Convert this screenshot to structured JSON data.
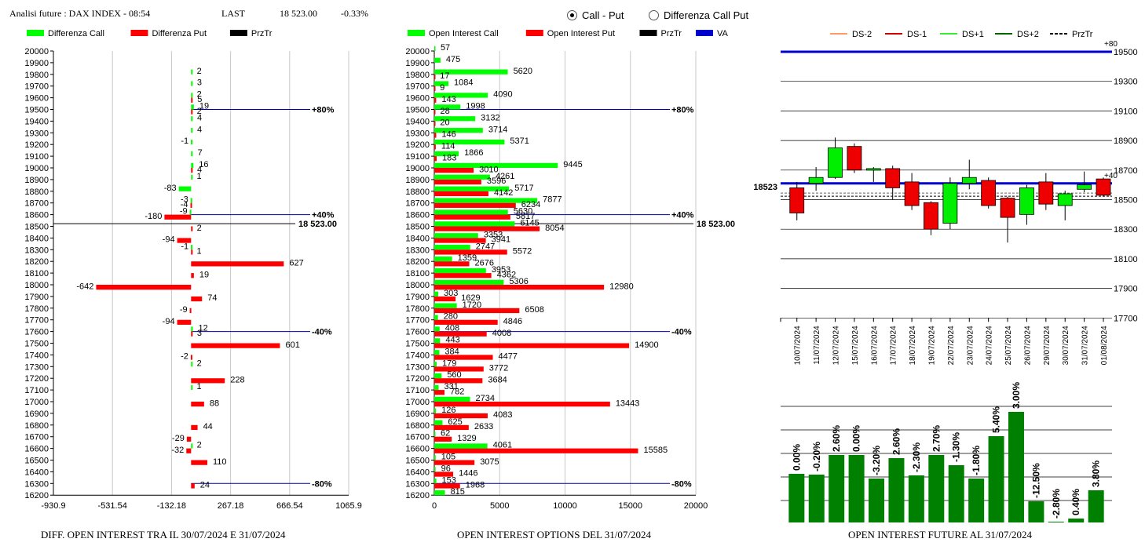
{
  "header": {
    "label": "Analisi future : DAX INDEX - 08:54",
    "last_label": "LAST",
    "last_value": "18 523.00",
    "change": "-0.33%"
  },
  "radios": [
    {
      "label": "Call - Put",
      "selected": true
    },
    {
      "label": "Differenza Call Put",
      "selected": false
    }
  ],
  "colors": {
    "call": "#00ff00",
    "put": "#ff0000",
    "price": "#000000",
    "va": "#0000cc",
    "bar_future": "#008000"
  },
  "chart_data": [
    {
      "type": "bar",
      "title": "DIFF. OPEN INTEREST TRA IL 30/07/2024 E 31/07/2024",
      "legend": [
        "Differenza Call",
        "Differenza Put",
        "PrzTr"
      ],
      "categories": [
        20000,
        19900,
        19800,
        19700,
        19600,
        19500,
        19400,
        19300,
        19200,
        19100,
        19000,
        18900,
        18800,
        18700,
        18600,
        18500,
        18400,
        18300,
        18200,
        18100,
        18000,
        17900,
        17800,
        17700,
        17600,
        17500,
        17400,
        17300,
        17200,
        17100,
        17000,
        16900,
        16800,
        16700,
        16600,
        16500,
        16400,
        16300,
        16200
      ],
      "series": [
        {
          "name": "Differenza Call",
          "values": [
            0,
            0,
            2,
            3,
            2,
            19,
            4,
            4,
            -1,
            7,
            16,
            1,
            -83,
            -3,
            -9,
            0,
            0,
            -1,
            0,
            0,
            0,
            0,
            0,
            0,
            12,
            0,
            0,
            2,
            0,
            1,
            0,
            0,
            0,
            0,
            2,
            0,
            0,
            0,
            0
          ]
        },
        {
          "name": "Differenza Put",
          "values": [
            0,
            0,
            0,
            0,
            5,
            2,
            0,
            0,
            0,
            0,
            4,
            0,
            0,
            -4,
            -180,
            2,
            -94,
            1,
            627,
            19,
            -642,
            74,
            -9,
            -94,
            3,
            601,
            -2,
            0,
            228,
            0,
            88,
            0,
            44,
            -29,
            -32,
            110,
            0,
            24,
            0
          ]
        }
      ],
      "xlim": [
        -930.9,
        1065.9
      ],
      "xticks": [
        "-930.9",
        "-531.54",
        "-132.18",
        "267.18",
        "666.54",
        "1065.9"
      ],
      "price": 18523.0,
      "price_label": "18 523.00",
      "levels": [
        {
          "strike": 19500,
          "label": "+80%"
        },
        {
          "strike": 18600,
          "label": "+40%"
        },
        {
          "strike": 17600,
          "label": "-40%"
        },
        {
          "strike": 16300,
          "label": "-80%"
        }
      ]
    },
    {
      "type": "bar",
      "title": "OPEN INTEREST OPTIONS DEL 31/07/2024",
      "legend": [
        "Open Interest Call",
        "Open Interest Put",
        "PrzTr",
        "VA"
      ],
      "categories": [
        20000,
        19900,
        19800,
        19700,
        19600,
        19500,
        19400,
        19300,
        19200,
        19100,
        19000,
        18900,
        18800,
        18700,
        18600,
        18500,
        18400,
        18300,
        18200,
        18100,
        18000,
        17900,
        17800,
        17700,
        17600,
        17500,
        17400,
        17300,
        17200,
        17100,
        17000,
        16900,
        16800,
        16700,
        16600,
        16500,
        16400,
        16300,
        16200
      ],
      "series": [
        {
          "name": "Open Interest Call",
          "values": [
            57,
            475,
            5620,
            1084,
            4090,
            1998,
            3132,
            3714,
            5371,
            1866,
            9445,
            4261,
            5717,
            7877,
            5630,
            6145,
            3353,
            2747,
            1359,
            3953,
            5306,
            303,
            1720,
            280,
            408,
            443,
            384,
            179,
            560,
            331,
            2734,
            126,
            625,
            62,
            4061,
            105,
            96,
            153,
            815
          ]
        },
        {
          "name": "Open Interest Put",
          "values": [
            0,
            0,
            17,
            9,
            143,
            28,
            20,
            146,
            114,
            183,
            3010,
            3596,
            4142,
            6234,
            5817,
            8054,
            3941,
            5572,
            2676,
            4362,
            12980,
            1629,
            6508,
            4846,
            4008,
            14900,
            4477,
            3772,
            3684,
            782,
            13443,
            4083,
            2633,
            1329,
            15585,
            3075,
            1446,
            1968,
            0
          ]
        }
      ],
      "xlim": [
        0,
        20000
      ],
      "xticks": [
        "0",
        "5000",
        "10000",
        "15000",
        "20000"
      ],
      "price": 18523.0,
      "price_label": "18 523.00",
      "levels": [
        {
          "strike": 19500,
          "label": "+80%"
        },
        {
          "strike": 18600,
          "label": "+40%"
        },
        {
          "strike": 17600,
          "label": "-40%"
        },
        {
          "strike": 16300,
          "label": "-80%"
        }
      ]
    },
    {
      "type": "candlestick",
      "legend": [
        "DS-2",
        "DS-1",
        "DS+1",
        "DS+2",
        "PrzTr"
      ],
      "dates": [
        "10/07/2024",
        "11/07/2024",
        "12/07/2024",
        "15/07/2024",
        "16/07/2024",
        "17/07/2024",
        "18/07/2024",
        "19/07/2024",
        "22/07/2024",
        "23/07/2024",
        "24/07/2024",
        "25/07/2024",
        "26/07/2024",
        "29/07/2024",
        "30/07/2024",
        "31/07/2024",
        "01/08/2024"
      ],
      "ohlc": [
        [
          18580,
          18620,
          18360,
          18410
        ],
        [
          18610,
          18720,
          18560,
          18650
        ],
        [
          18650,
          18920,
          18640,
          18850
        ],
        [
          18860,
          18880,
          18680,
          18700
        ],
        [
          18700,
          18720,
          18620,
          18710
        ],
        [
          18710,
          18730,
          18500,
          18580
        ],
        [
          18620,
          18680,
          18430,
          18460
        ],
        [
          18480,
          18490,
          18260,
          18300
        ],
        [
          18340,
          18650,
          18300,
          18610
        ],
        [
          18610,
          18770,
          18570,
          18650
        ],
        [
          18630,
          18650,
          18440,
          18460
        ],
        [
          18510,
          18520,
          18210,
          18380
        ],
        [
          18400,
          18600,
          18330,
          18580
        ],
        [
          18620,
          18680,
          18430,
          18470
        ],
        [
          18460,
          18560,
          18360,
          18540
        ],
        [
          18570,
          18690,
          18550,
          18600
        ],
        [
          18640,
          18650,
          18520,
          18530
        ]
      ],
      "ylim": [
        17700,
        19600
      ],
      "yticks": [
        17700,
        17900,
        18100,
        18300,
        18500,
        18700,
        18900,
        19100,
        19300,
        19500
      ],
      "price": 18523,
      "price_label": "18523",
      "va_lines": [
        {
          "value": 19500,
          "label": "+80"
        },
        {
          "value": 18610,
          "label": "+40"
        }
      ]
    },
    {
      "type": "bar",
      "title": "OPEN INTEREST FUTURE AL 31/07/2024",
      "labels": [
        "0.00%",
        "-0.20%",
        "2.60%",
        "0.00%",
        "-3.20%",
        "2.60%",
        "-2.30%",
        "2.70%",
        "-1.30%",
        "-1.80%",
        "5.40%",
        "3.00%",
        "-12.50%",
        "-2.80%",
        "0.40%",
        "3.80%"
      ],
      "values": [
        62,
        61,
        86,
        86,
        56,
        82,
        60,
        86,
        73,
        56,
        110,
        141,
        27,
        1,
        5,
        41
      ]
    }
  ]
}
